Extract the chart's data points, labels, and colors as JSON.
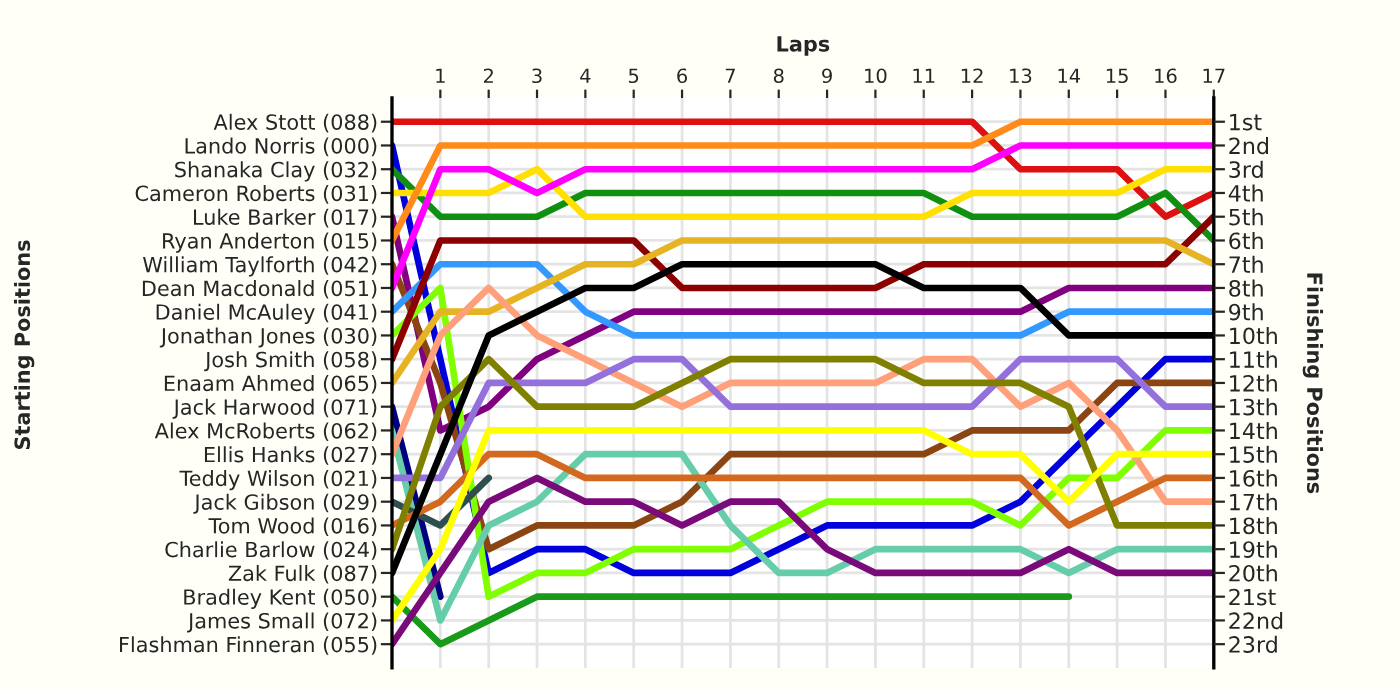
{
  "chart_data": {
    "type": "line",
    "xlabel": "Laps",
    "ylabel": "Finishing Positions",
    "annotations": [
      "Starting Positions"
    ],
    "x": [
      0,
      1,
      2,
      3,
      4,
      5,
      6,
      7,
      8,
      9,
      10,
      11,
      12,
      13,
      14,
      15,
      16,
      17
    ],
    "xlim": [
      0,
      17
    ],
    "xticks": [
      1,
      2,
      3,
      4,
      5,
      6,
      7,
      8,
      9,
      10,
      11,
      12,
      13,
      14,
      15,
      16,
      17
    ],
    "ylim": [
      24,
      0
    ],
    "y_categories": [
      "Alex Stott (088)",
      "Lando Norris (000)",
      "Shanaka Clay (032)",
      "Cameron Roberts (031)",
      "Luke Barker (017)",
      "Ryan Anderton (015)",
      "William Taylforth (042)",
      "Dean Macdonald (051)",
      "Daniel McAuley (041)",
      "Jonathan Jones (030)",
      "Josh Smith (058)",
      "Enaam Ahmed (065)",
      "Jack Harwood (071)",
      "Alex McRoberts (062)",
      "Ellis Hanks (027)",
      "Teddy Wilson (021)",
      "Jack Gibson (029)",
      "Tom Wood (016)",
      "Charlie Barlow (024)",
      "Zak Fulk (087)",
      "Bradley Kent (050)",
      "James Small (072)",
      "Flashman Finneran (055)"
    ],
    "yticks": [
      {
        "value": 1,
        "label": "1st"
      },
      {
        "value": 2,
        "label": "2nd"
      },
      {
        "value": 3,
        "label": "3rd"
      },
      {
        "value": 4,
        "label": "4th"
      },
      {
        "value": 5,
        "label": "5th"
      },
      {
        "value": 6,
        "label": "6th"
      },
      {
        "value": 7,
        "label": "7th"
      },
      {
        "value": 8,
        "label": "8th"
      },
      {
        "value": 9,
        "label": "9th"
      },
      {
        "value": 10,
        "label": "10th"
      },
      {
        "value": 11,
        "label": "11th"
      },
      {
        "value": 12,
        "label": "12th"
      },
      {
        "value": 13,
        "label": "13th"
      },
      {
        "value": 14,
        "label": "14th"
      },
      {
        "value": 15,
        "label": "15th"
      },
      {
        "value": 16,
        "label": "16th"
      },
      {
        "value": 17,
        "label": "17th"
      },
      {
        "value": 18,
        "label": "18th"
      },
      {
        "value": 19,
        "label": "19th"
      },
      {
        "value": 20,
        "label": "20th"
      },
      {
        "value": 21,
        "label": "21st"
      },
      {
        "value": 22,
        "label": "22nd"
      },
      {
        "value": 23,
        "label": "23rd"
      }
    ],
    "grid": true,
    "line_style": "solid",
    "series": [
      {
        "color": "#dd1111",
        "values": [
          1,
          1,
          1,
          1,
          1,
          1,
          1,
          1,
          1,
          1,
          1,
          1,
          1,
          3,
          3,
          3,
          5,
          4
        ]
      },
      {
        "color": "#0000dd",
        "values": [
          2,
          11,
          20,
          19,
          19,
          20,
          20,
          20,
          19,
          18,
          18,
          18,
          18,
          17,
          15,
          13,
          11,
          11
        ]
      },
      {
        "color": "#109010",
        "values": [
          3,
          5,
          5,
          5,
          4,
          4,
          4,
          4,
          4,
          4,
          4,
          4,
          5,
          5,
          5,
          5,
          4,
          6
        ]
      },
      {
        "color": "#ffe000",
        "values": [
          4,
          4,
          4,
          3,
          5,
          5,
          5,
          5,
          5,
          5,
          5,
          5,
          4,
          4,
          4,
          4,
          3,
          3
        ]
      },
      {
        "color": "#800080",
        "values": [
          5,
          14,
          13,
          11,
          10,
          9,
          9,
          9,
          9,
          9,
          9,
          9,
          9,
          9,
          8,
          8,
          8,
          8
        ]
      },
      {
        "color": "#ff8c1a",
        "values": [
          6,
          2,
          2,
          2,
          2,
          2,
          2,
          2,
          2,
          2,
          2,
          2,
          2,
          1,
          1,
          1,
          1,
          1
        ]
      },
      {
        "color": "#8b4513",
        "values": [
          7,
          12,
          19,
          18,
          18,
          18,
          17,
          15,
          15,
          15,
          15,
          15,
          14,
          14,
          14,
          12,
          12,
          12
        ]
      },
      {
        "color": "#ff00ff",
        "values": [
          8,
          3,
          3,
          4,
          3,
          3,
          3,
          3,
          3,
          3,
          3,
          3,
          3,
          2,
          2,
          2,
          2,
          2
        ]
      },
      {
        "color": "#3399ff",
        "values": [
          9,
          7,
          7,
          7,
          9,
          10,
          10,
          10,
          10,
          10,
          10,
          10,
          10,
          10,
          9,
          9,
          9,
          9
        ]
      },
      {
        "color": "#80ff00",
        "values": [
          10,
          8,
          21,
          20,
          20,
          19,
          19,
          19,
          18,
          17,
          17,
          17,
          17,
          18,
          16,
          16,
          14,
          14
        ]
      },
      {
        "color": "#8b0000",
        "values": [
          11,
          6,
          6,
          6,
          6,
          6,
          8,
          8,
          8,
          8,
          8,
          7,
          7,
          7,
          7,
          7,
          7,
          5
        ]
      },
      {
        "color": "#e6b422",
        "values": [
          12,
          9,
          9,
          8,
          7,
          7,
          6,
          6,
          6,
          6,
          6,
          6,
          6,
          6,
          6,
          6,
          6,
          7
        ]
      },
      {
        "color": "#000080",
        "values": [
          13,
          21,
          null,
          null,
          null,
          null,
          null,
          null,
          null,
          null,
          null,
          null,
          null,
          null,
          null,
          null,
          null,
          null
        ]
      },
      {
        "color": "#66cdaa",
        "values": [
          14,
          22,
          18,
          17,
          15,
          15,
          15,
          18,
          20,
          20,
          19,
          19,
          19,
          19,
          20,
          19,
          19,
          19
        ]
      },
      {
        "color": "#ffa07a",
        "values": [
          15,
          10,
          8,
          10,
          11,
          12,
          13,
          12,
          12,
          12,
          12,
          11,
          11,
          13,
          12,
          14,
          17,
          17
        ]
      },
      {
        "color": "#9370db",
        "values": [
          16,
          16,
          12,
          12,
          12,
          11,
          11,
          13,
          13,
          13,
          13,
          13,
          13,
          11,
          11,
          11,
          13,
          13
        ]
      },
      {
        "color": "#2f4f4f",
        "values": [
          17,
          18,
          16,
          null,
          null,
          null,
          null,
          null,
          null,
          null,
          null,
          null,
          null,
          null,
          null,
          null,
          null,
          null
        ]
      },
      {
        "color": "#d2691e",
        "values": [
          18,
          17,
          15,
          15,
          16,
          16,
          16,
          16,
          16,
          16,
          16,
          16,
          16,
          16,
          18,
          17,
          16,
          16
        ]
      },
      {
        "color": "#808000",
        "values": [
          19,
          13,
          11,
          13,
          13,
          13,
          12,
          11,
          11,
          11,
          11,
          12,
          12,
          12,
          13,
          18,
          18,
          18
        ]
      },
      {
        "color": "#000000",
        "values": [
          20,
          15,
          10,
          9,
          8,
          8,
          7,
          7,
          7,
          7,
          7,
          8,
          8,
          8,
          10,
          10,
          10,
          10
        ]
      },
      {
        "color": "#1a9a1a",
        "values": [
          21,
          23,
          22,
          21,
          21,
          21,
          21,
          21,
          21,
          21,
          21,
          21,
          21,
          21,
          21,
          null,
          null,
          null
        ]
      },
      {
        "color": "#ffff00",
        "values": [
          22,
          19,
          14,
          14,
          14,
          14,
          14,
          14,
          14,
          14,
          14,
          14,
          15,
          15,
          17,
          15,
          15,
          15
        ]
      },
      {
        "color": "#7a0a7a",
        "values": [
          23,
          20,
          17,
          16,
          17,
          17,
          18,
          17,
          17,
          19,
          20,
          20,
          20,
          20,
          19,
          20,
          20,
          20
        ]
      }
    ]
  }
}
